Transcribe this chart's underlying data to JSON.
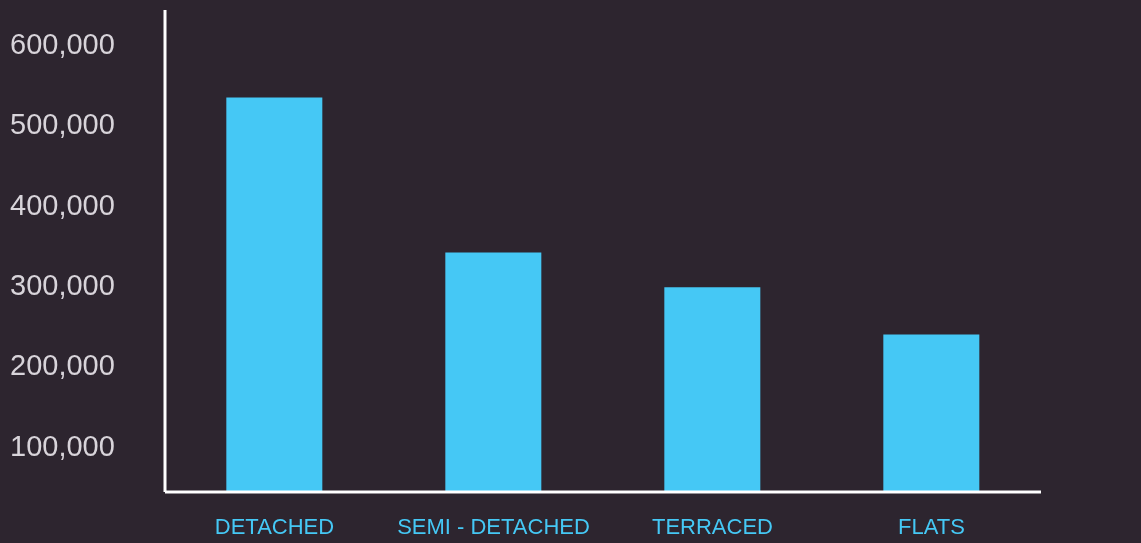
{
  "chart_data": {
    "type": "bar",
    "categories": [
      "DETACHED",
      "SEMI - DETACHED",
      "TERRACED",
      "FLATS"
    ],
    "series": [
      {
        "color": "#45c8f5",
        "values": [
          536000,
          343000,
          300000,
          241000
        ]
      }
    ],
    "ylim": [
      45000,
      645000
    ],
    "yticks": [
      {
        "value": 100000,
        "label": "100,000"
      },
      {
        "value": 200000,
        "label": "200,000"
      },
      {
        "value": 300000,
        "label": "300,000"
      },
      {
        "value": 400000,
        "label": "400,000"
      },
      {
        "value": 500000,
        "label": "500,000"
      },
      {
        "value": 600000,
        "label": "600,000"
      }
    ],
    "grid": false,
    "legend": false
  }
}
